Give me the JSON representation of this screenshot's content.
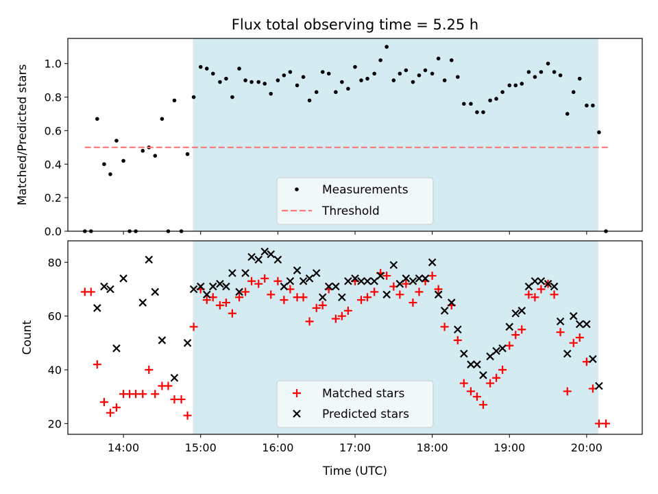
{
  "chart_data": [
    {
      "type": "scatter",
      "title": "Flux total observing time = 5.25 h",
      "xlabel": "",
      "ylabel": "Matched/Predicted stars",
      "ylim": [
        0,
        1.15
      ],
      "yticks": [
        0.0,
        0.2,
        0.4,
        0.6,
        0.8,
        1.0
      ],
      "ytick_labels": [
        "0.0",
        "0.2",
        "0.4",
        "0.6",
        "0.8",
        "1.0"
      ],
      "xlim": [
        13.28,
        20.72
      ],
      "xticks": [
        14,
        15,
        16,
        17,
        18,
        19,
        20
      ],
      "xtick_labels": [
        "14:00",
        "15:00",
        "16:00",
        "17:00",
        "18:00",
        "19:00",
        "20:00"
      ],
      "shaded_span": {
        "x": [
          14.9,
          20.15
        ],
        "color": "#d4ebf1"
      },
      "threshold": {
        "name": "Threshold",
        "value": 0.5,
        "x": [
          13.5,
          20.3
        ],
        "color": "#ff7777"
      },
      "legend": {
        "placement": "lower-center",
        "entries": [
          "Measurements",
          "Threshold"
        ]
      },
      "series": [
        {
          "name": "Measurements",
          "color": "#000000",
          "x": [
            13.5,
            13.58,
            13.66,
            13.75,
            13.83,
            13.91,
            14.0,
            14.08,
            14.16,
            14.25,
            14.33,
            14.41,
            14.5,
            14.58,
            14.66,
            14.75,
            14.83,
            14.91,
            15.0,
            15.08,
            15.16,
            15.25,
            15.33,
            15.41,
            15.5,
            15.58,
            15.66,
            15.75,
            15.83,
            15.91,
            16.0,
            16.08,
            16.16,
            16.25,
            16.33,
            16.41,
            16.5,
            16.58,
            16.66,
            16.75,
            16.83,
            16.91,
            17.0,
            17.08,
            17.16,
            17.25,
            17.33,
            17.41,
            17.5,
            17.58,
            17.66,
            17.75,
            17.83,
            17.91,
            18.0,
            18.08,
            18.16,
            18.25,
            18.33,
            18.41,
            18.5,
            18.58,
            18.66,
            18.75,
            18.83,
            18.91,
            19.0,
            19.08,
            19.16,
            19.25,
            19.33,
            19.41,
            19.5,
            19.58,
            19.66,
            19.75,
            19.83,
            19.91,
            20.0,
            20.08,
            20.16,
            20.25
          ],
          "y": [
            0.0,
            0.0,
            0.67,
            0.4,
            0.34,
            0.54,
            0.42,
            0.0,
            0.0,
            0.48,
            0.5,
            0.45,
            0.67,
            0.0,
            0.78,
            0.0,
            0.46,
            0.8,
            0.98,
            0.97,
            0.94,
            0.89,
            0.91,
            0.8,
            0.97,
            0.9,
            0.89,
            0.89,
            0.88,
            0.82,
            0.9,
            0.93,
            0.95,
            0.87,
            0.92,
            0.78,
            0.83,
            0.95,
            0.94,
            0.83,
            0.89,
            0.85,
            0.98,
            0.9,
            0.91,
            0.94,
            1.02,
            1.1,
            0.9,
            0.94,
            0.96,
            0.89,
            0.93,
            0.96,
            0.94,
            1.03,
            0.9,
            1.02,
            0.92,
            0.76,
            0.76,
            0.71,
            0.71,
            0.78,
            0.79,
            0.83,
            0.87,
            0.87,
            0.88,
            0.95,
            0.92,
            0.95,
            1.0,
            0.95,
            0.93,
            0.7,
            0.83,
            0.91,
            0.75,
            0.75,
            0.59,
            0.0
          ]
        }
      ]
    },
    {
      "type": "scatter",
      "title": "",
      "xlabel": "Time (UTC)",
      "ylabel": "Count",
      "ylim": [
        16,
        88
      ],
      "yticks": [
        20,
        40,
        60,
        80
      ],
      "ytick_labels": [
        "20",
        "40",
        "60",
        "80"
      ],
      "xlim": [
        13.28,
        20.72
      ],
      "xticks": [
        14,
        15,
        16,
        17,
        18,
        19,
        20
      ],
      "xtick_labels": [
        "14:00",
        "15:00",
        "16:00",
        "17:00",
        "18:00",
        "19:00",
        "20:00"
      ],
      "shaded_span": {
        "x": [
          14.9,
          20.15
        ],
        "color": "#d4ebf1"
      },
      "legend": {
        "placement": "lower-center",
        "entries": [
          "Matched stars",
          "Predicted stars"
        ]
      },
      "series": [
        {
          "name": "Matched stars",
          "marker": "plus",
          "color": "#ff0000",
          "x": [
            13.5,
            13.58,
            13.66,
            13.75,
            13.83,
            13.91,
            14.0,
            14.08,
            14.16,
            14.25,
            14.33,
            14.41,
            14.5,
            14.58,
            14.66,
            14.75,
            14.83,
            14.91,
            15.0,
            15.08,
            15.16,
            15.25,
            15.33,
            15.41,
            15.5,
            15.58,
            15.66,
            15.75,
            15.83,
            15.91,
            16.0,
            16.08,
            16.16,
            16.25,
            16.33,
            16.41,
            16.5,
            16.58,
            16.66,
            16.75,
            16.83,
            16.91,
            17.0,
            17.08,
            17.16,
            17.25,
            17.33,
            17.41,
            17.5,
            17.58,
            17.66,
            17.75,
            17.83,
            17.91,
            18.0,
            18.08,
            18.16,
            18.25,
            18.33,
            18.41,
            18.5,
            18.58,
            18.66,
            18.75,
            18.83,
            18.91,
            19.0,
            19.08,
            19.16,
            19.25,
            19.33,
            19.41,
            19.5,
            19.58,
            19.66,
            19.75,
            19.83,
            19.91,
            20.0,
            20.08,
            20.16,
            20.25
          ],
          "y": [
            69,
            69,
            42,
            28,
            24,
            26,
            31,
            31,
            31,
            31,
            40,
            31,
            34,
            34,
            29,
            29,
            23,
            56,
            70,
            66,
            67,
            64,
            65,
            61,
            67,
            69,
            73,
            72,
            74,
            68,
            73,
            66,
            70,
            67,
            67,
            58,
            63,
            64,
            70,
            59,
            60,
            62,
            73,
            66,
            67,
            69,
            76,
            75,
            71,
            68,
            72,
            65,
            69,
            73,
            75,
            70,
            56,
            64,
            51,
            35,
            32,
            30,
            27,
            35,
            37,
            40,
            49,
            53,
            55,
            68,
            67,
            70,
            72,
            68,
            54,
            32,
            50,
            52,
            43,
            33,
            20,
            20
          ]
        },
        {
          "name": "Predicted stars",
          "marker": "x",
          "color": "#000000",
          "x": [
            13.66,
            13.75,
            13.83,
            13.91,
            14.0,
            14.25,
            14.33,
            14.41,
            14.5,
            14.66,
            14.83,
            14.91,
            15.0,
            15.08,
            15.16,
            15.25,
            15.33,
            15.41,
            15.5,
            15.58,
            15.66,
            15.75,
            15.83,
            15.91,
            16.0,
            16.08,
            16.16,
            16.25,
            16.33,
            16.41,
            16.5,
            16.58,
            16.66,
            16.75,
            16.83,
            16.91,
            17.0,
            17.08,
            17.16,
            17.25,
            17.33,
            17.41,
            17.5,
            17.58,
            17.66,
            17.75,
            17.83,
            17.91,
            18.0,
            18.08,
            18.16,
            18.25,
            18.33,
            18.41,
            18.5,
            18.58,
            18.66,
            18.75,
            18.83,
            18.91,
            19.0,
            19.08,
            19.16,
            19.25,
            19.33,
            19.41,
            19.5,
            19.58,
            19.66,
            19.75,
            19.83,
            19.91,
            20.0,
            20.08,
            20.16
          ],
          "y": [
            63,
            71,
            70,
            48,
            74,
            65,
            81,
            69,
            51,
            37,
            50,
            70,
            71,
            68,
            71,
            72,
            71,
            76,
            69,
            76,
            82,
            81,
            84,
            83,
            81,
            71,
            73,
            77,
            73,
            74,
            76,
            67,
            71,
            71,
            67,
            73,
            74,
            73,
            73,
            73,
            75,
            68,
            79,
            72,
            74,
            73,
            74,
            74,
            80,
            68,
            62,
            65,
            55,
            46,
            42,
            42,
            38,
            45,
            47,
            48,
            56,
            61,
            62,
            71,
            73,
            73,
            72,
            71,
            58,
            46,
            60,
            57,
            57,
            44,
            34
          ]
        }
      ]
    }
  ]
}
